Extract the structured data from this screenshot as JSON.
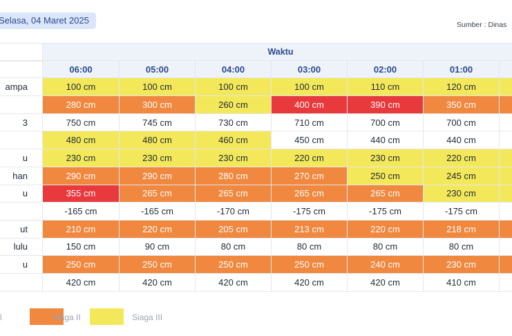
{
  "header": {
    "date_label": "Selasa, 04 Maret 2025",
    "source_label": "Sumber : Dinas"
  },
  "table": {
    "group_header": "Waktu",
    "times": [
      "06:00",
      "05:00",
      "04:00",
      "03:00",
      "02:00",
      "01:00",
      ""
    ],
    "rows": [
      {
        "name": "ampa",
        "cells": [
          {
            "v": "100 cm",
            "s": "siaga3"
          },
          {
            "v": "100 cm",
            "s": "siaga3"
          },
          {
            "v": "100 cm",
            "s": "siaga3"
          },
          {
            "v": "100 cm",
            "s": "siaga3"
          },
          {
            "v": "110 cm",
            "s": "siaga3"
          },
          {
            "v": "120 cm",
            "s": "siaga3"
          },
          {
            "v": "",
            "s": "siaga3"
          }
        ]
      },
      {
        "name": "",
        "cells": [
          {
            "v": "280 cm",
            "s": "siaga2"
          },
          {
            "v": "300 cm",
            "s": "siaga2"
          },
          {
            "v": "260 cm",
            "s": "siaga3"
          },
          {
            "v": "400 cm",
            "s": "merah"
          },
          {
            "v": "390 cm",
            "s": "merah"
          },
          {
            "v": "350 cm",
            "s": "siaga2"
          },
          {
            "v": "",
            "s": "siaga2"
          }
        ]
      },
      {
        "name": "3",
        "cells": [
          {
            "v": "750 cm",
            "s": "normal"
          },
          {
            "v": "745 cm",
            "s": "normal"
          },
          {
            "v": "730 cm",
            "s": "normal"
          },
          {
            "v": "710 cm",
            "s": "normal"
          },
          {
            "v": "700 cm",
            "s": "normal"
          },
          {
            "v": "700 cm",
            "s": "normal"
          },
          {
            "v": "",
            "s": "normal"
          }
        ]
      },
      {
        "name": "",
        "cells": [
          {
            "v": "480 cm",
            "s": "siaga3"
          },
          {
            "v": "480 cm",
            "s": "siaga3"
          },
          {
            "v": "460 cm",
            "s": "siaga3"
          },
          {
            "v": "450 cm",
            "s": "normal"
          },
          {
            "v": "440 cm",
            "s": "normal"
          },
          {
            "v": "440 cm",
            "s": "normal"
          },
          {
            "v": "",
            "s": "normal"
          }
        ]
      },
      {
        "name": "u",
        "cells": [
          {
            "v": "230 cm",
            "s": "siaga3"
          },
          {
            "v": "230 cm",
            "s": "siaga3"
          },
          {
            "v": "230 cm",
            "s": "siaga3"
          },
          {
            "v": "220 cm",
            "s": "siaga3"
          },
          {
            "v": "230 cm",
            "s": "siaga3"
          },
          {
            "v": "220 cm",
            "s": "siaga3"
          },
          {
            "v": "",
            "s": "siaga3"
          }
        ]
      },
      {
        "name": "han",
        "cells": [
          {
            "v": "290 cm",
            "s": "siaga2"
          },
          {
            "v": "290 cm",
            "s": "siaga2"
          },
          {
            "v": "280 cm",
            "s": "siaga2"
          },
          {
            "v": "270 cm",
            "s": "siaga2"
          },
          {
            "v": "250 cm",
            "s": "siaga3"
          },
          {
            "v": "245 cm",
            "s": "siaga3"
          },
          {
            "v": "",
            "s": "siaga3"
          }
        ]
      },
      {
        "name": "u",
        "cells": [
          {
            "v": "355 cm",
            "s": "merah"
          },
          {
            "v": "265 cm",
            "s": "siaga2"
          },
          {
            "v": "265 cm",
            "s": "siaga2"
          },
          {
            "v": "265 cm",
            "s": "siaga2"
          },
          {
            "v": "265 cm",
            "s": "siaga2"
          },
          {
            "v": "230 cm",
            "s": "siaga3"
          },
          {
            "v": "",
            "s": "siaga3"
          }
        ]
      },
      {
        "name": "",
        "cells": [
          {
            "v": "-165 cm",
            "s": "normal"
          },
          {
            "v": "-165 cm",
            "s": "normal"
          },
          {
            "v": "-170 cm",
            "s": "normal"
          },
          {
            "v": "-175 cm",
            "s": "normal"
          },
          {
            "v": "-175 cm",
            "s": "normal"
          },
          {
            "v": "-175 cm",
            "s": "normal"
          },
          {
            "v": "",
            "s": "normal"
          }
        ]
      },
      {
        "name": "ut",
        "cells": [
          {
            "v": "210 cm",
            "s": "siaga2"
          },
          {
            "v": "220 cm",
            "s": "siaga2"
          },
          {
            "v": "205 cm",
            "s": "siaga2"
          },
          {
            "v": "213 cm",
            "s": "siaga2"
          },
          {
            "v": "220 cm",
            "s": "siaga2"
          },
          {
            "v": "218 cm",
            "s": "siaga2"
          },
          {
            "v": "",
            "s": "siaga2"
          }
        ]
      },
      {
        "name": "lulu",
        "cells": [
          {
            "v": "150 cm",
            "s": "normal"
          },
          {
            "v": "90 cm",
            "s": "normal"
          },
          {
            "v": "80 cm",
            "s": "normal"
          },
          {
            "v": "80 cm",
            "s": "normal"
          },
          {
            "v": "80 cm",
            "s": "normal"
          },
          {
            "v": "80 cm",
            "s": "normal"
          },
          {
            "v": "",
            "s": "normal"
          }
        ]
      },
      {
        "name": "u",
        "cells": [
          {
            "v": "250 cm",
            "s": "siaga2"
          },
          {
            "v": "250 cm",
            "s": "siaga2"
          },
          {
            "v": "250 cm",
            "s": "siaga2"
          },
          {
            "v": "250 cm",
            "s": "siaga2"
          },
          {
            "v": "240 cm",
            "s": "siaga2"
          },
          {
            "v": "230 cm",
            "s": "siaga2"
          },
          {
            "v": "",
            "s": "siaga2"
          }
        ]
      },
      {
        "name": "",
        "cells": [
          {
            "v": "420 cm",
            "s": "normal"
          },
          {
            "v": "420 cm",
            "s": "normal"
          },
          {
            "v": "420 cm",
            "s": "normal"
          },
          {
            "v": "420 cm",
            "s": "normal"
          },
          {
            "v": "420 cm",
            "s": "normal"
          },
          {
            "v": "410 cm",
            "s": "normal"
          },
          {
            "v": "",
            "s": "normal"
          }
        ]
      }
    ]
  },
  "legend": [
    {
      "label": "l",
      "status": "merah",
      "color": "#e8393d"
    },
    {
      "label": "Siaga II",
      "status": "siaga2",
      "color": "#f0883f"
    },
    {
      "label": "Siaga III",
      "status": "siaga3",
      "color": "#f3e85a"
    }
  ]
}
